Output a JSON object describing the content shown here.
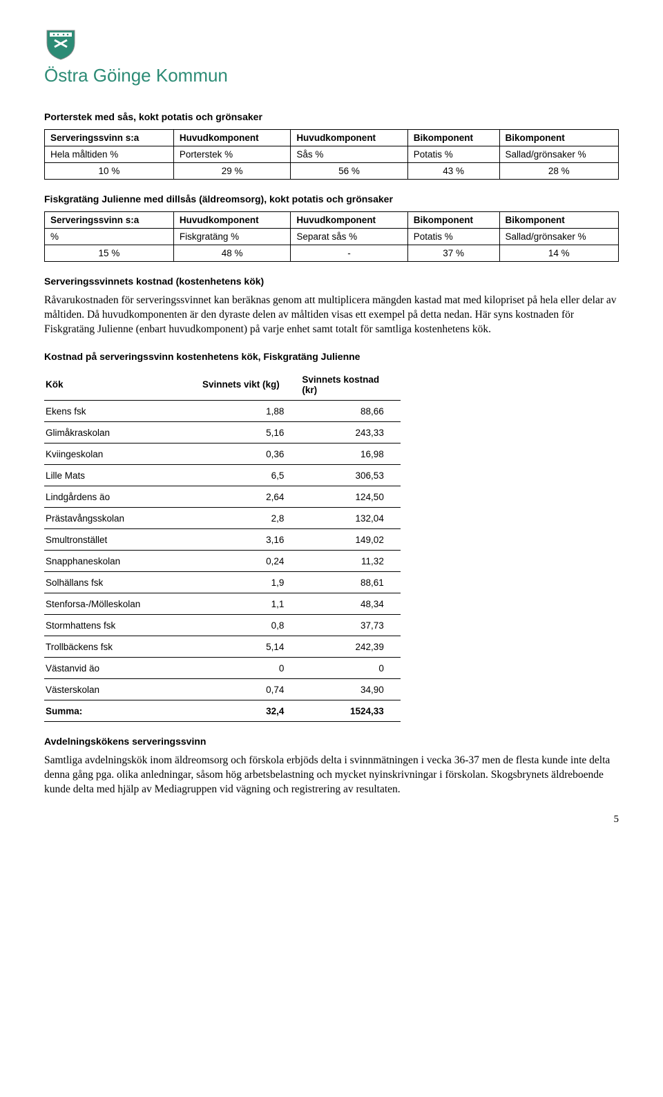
{
  "brand": {
    "name": "Östra Göinge Kommun",
    "accent": "#2c8b75"
  },
  "section1": {
    "title": "Porterstek med sås, kokt potatis och grönsaker",
    "headers": [
      "Serveringssvinn s:a",
      "Huvudkomponent",
      "Huvudkomponent",
      "Bikomponent",
      "Bikomponent"
    ],
    "row_labels": [
      "Hela måltiden %",
      "Porterstek %",
      "Sås %",
      "Potatis %",
      "Sallad/grönsaker %"
    ],
    "values": [
      "10 %",
      "29 %",
      "56 %",
      "43 %",
      "28 %"
    ]
  },
  "section2": {
    "title": "Fiskgratäng Julienne med dillsås (äldreomsorg), kokt potatis och grönsaker",
    "headers": [
      "Serveringssvinn s:a",
      "Huvudkomponent",
      "Huvudkomponent",
      "Bikomponent",
      "Bikomponent"
    ],
    "row_labels": [
      "%",
      "Fiskgratäng %",
      "Separat sås %",
      "Potatis %",
      "Sallad/grönsaker %"
    ],
    "values": [
      "15 %",
      "48 %",
      "-",
      "37 %",
      "14 %"
    ]
  },
  "section3": {
    "title": "Serveringssvinnets kostnad (kostenhetens kök)",
    "paragraph": "Råvarukostnaden för serveringssvinnet kan beräknas genom att multiplicera mängden kastad mat med kilopriset på hela eller delar av måltiden. Då huvudkomponenten är den dyraste delen av måltiden visas ett exempel på detta nedan. Här syns kostnaden för Fiskgratäng Julienne (enbart huvudkomponent) på varje enhet samt totalt för samtliga kostenhetens kök."
  },
  "cost_table": {
    "title": "Kostnad på serveringssvinn kostenhetens kök, Fiskgratäng Julienne",
    "columns": [
      "Kök",
      "Svinnets vikt (kg)",
      "Svinnets kostnad (kr)"
    ],
    "rows": [
      [
        "Ekens fsk",
        "1,88",
        "88,66"
      ],
      [
        "Glimåkraskolan",
        "5,16",
        "243,33"
      ],
      [
        "Kviingeskolan",
        "0,36",
        "16,98"
      ],
      [
        "Lille Mats",
        "6,5",
        "306,53"
      ],
      [
        "Lindgårdens äo",
        "2,64",
        "124,50"
      ],
      [
        "Prästavångsskolan",
        "2,8",
        "132,04"
      ],
      [
        "Smultronstället",
        "3,16",
        "149,02"
      ],
      [
        "Snapphaneskolan",
        "0,24",
        "11,32"
      ],
      [
        "Solhällans fsk",
        "1,9",
        "88,61"
      ],
      [
        "Stenforsa-/Mölleskolan",
        "1,1",
        "48,34"
      ],
      [
        "Stormhattens fsk",
        "0,8",
        "37,73"
      ],
      [
        "Trollbäckens fsk",
        "5,14",
        "242,39"
      ],
      [
        "Västanvid äo",
        "0",
        "0"
      ],
      [
        "Västerskolan",
        "0,74",
        "34,90"
      ]
    ],
    "sum": [
      "Summa:",
      "32,4",
      "1524,33"
    ]
  },
  "section4": {
    "title": "Avdelningskökens serveringssvinn",
    "paragraph": "Samtliga avdelningskök inom äldreomsorg och förskola erbjöds delta i svinnmätningen i vecka 36-37 men de flesta kunde inte delta denna gång pga. olika anledningar, såsom hög arbetsbelastning och mycket nyinskrivningar i förskolan. Skogsbrynets äldreboende kunde delta med hjälp av Mediagruppen vid vägning och registrering av resultaten."
  },
  "page_number": "5"
}
